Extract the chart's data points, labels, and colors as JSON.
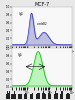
{
  "title": "MCF-7",
  "top_hist": {
    "line_color": "#3333bb",
    "fill_color": "#8888cc",
    "fill_alpha": 0.5,
    "peak1_mu": 15,
    "peak1_sigma": 0.1,
    "peak1_amp": 0.8,
    "peak2_mu": 55,
    "peak2_sigma": 0.22,
    "peak2_amp": 0.32,
    "baseline": 0.03,
    "label1": "IgG",
    "label2": "c-erbB2"
  },
  "bottom_hist": {
    "line_color": "#00bb00",
    "fill_color": "#66ee66",
    "fill_alpha": 0.4,
    "peak_mu": 30,
    "peak_sigma": 0.2,
    "peak_amp": 0.88,
    "baseline": 0.03,
    "label": "IgG"
  },
  "background_color": "#e8e8e8",
  "plot_bg": "#f8f8f8",
  "border_color": "#aaaaaa",
  "title_fontsize": 3.5,
  "tick_fontsize": 2.0,
  "label_fontsize": 2.0,
  "line_width": 0.5
}
